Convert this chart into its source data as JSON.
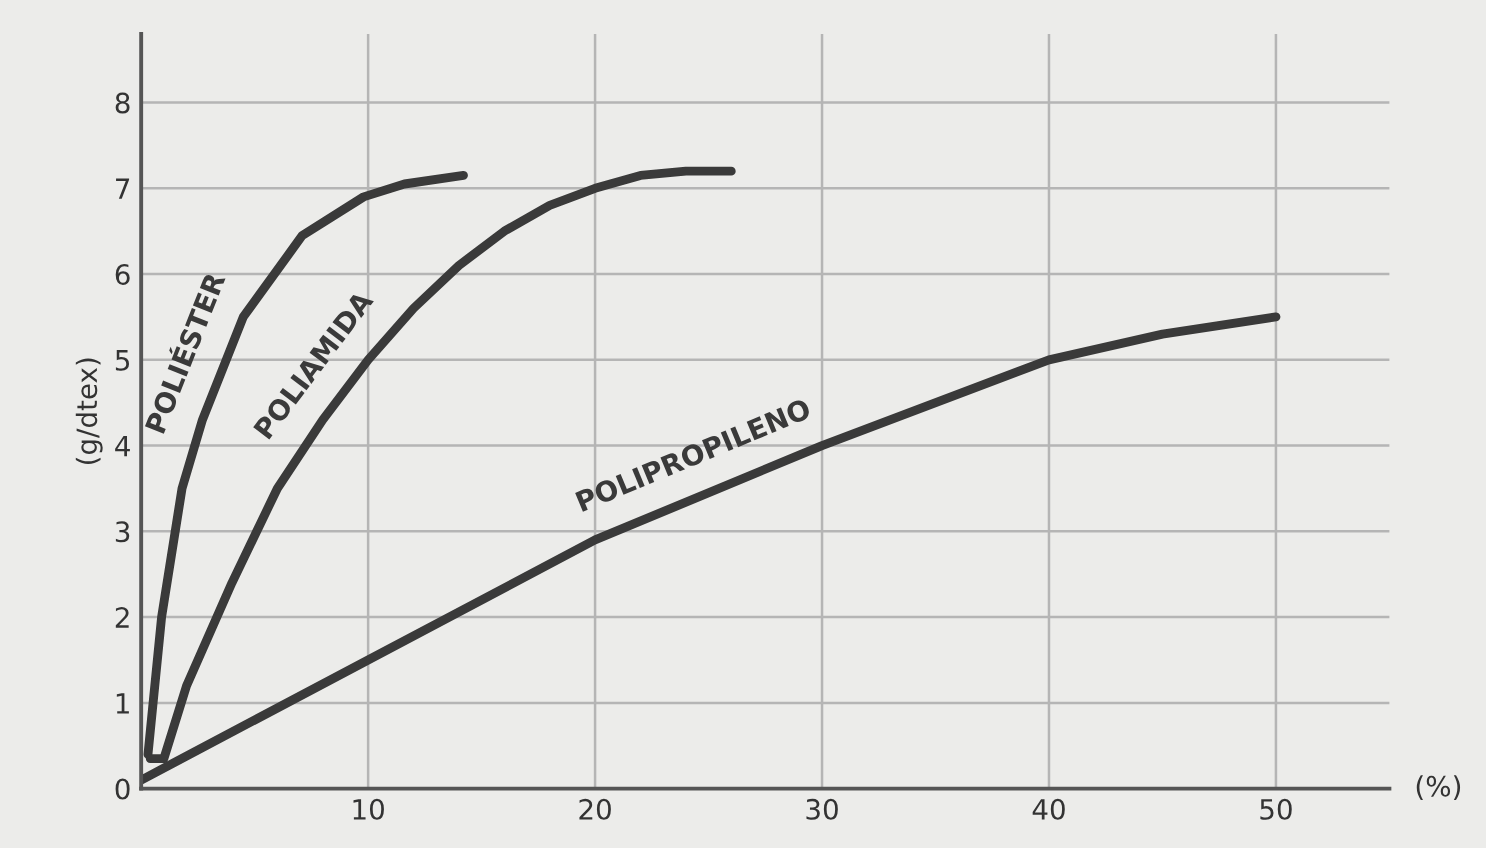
{
  "chart_data": {
    "type": "line",
    "xlabel": "(%)",
    "ylabel": "(g/dtex)",
    "xlim": [
      0,
      55
    ],
    "ylim": [
      0,
      8.8
    ],
    "xticks": [
      10,
      20,
      30,
      40,
      50
    ],
    "yticks": [
      0,
      1,
      2,
      3,
      4,
      5,
      6,
      7,
      8
    ],
    "grid": true,
    "marker": "none",
    "line_style": "solid",
    "series": [
      {
        "name": "POLIÉSTER",
        "color": "#3a3a3a",
        "x": [
          0.3,
          0.9,
          1.8,
          2.7,
          4.5,
          7.1,
          9.8,
          11.6,
          14.2
        ],
        "values": [
          0.4,
          2.0,
          3.5,
          4.3,
          5.5,
          6.45,
          6.9,
          7.05,
          7.15
        ]
      },
      {
        "name": "POLIAMIDA",
        "color": "#3a3a3a",
        "x": [
          0.4,
          1.0,
          2,
          4,
          6,
          8,
          10,
          12,
          14,
          16,
          18,
          20,
          22,
          24,
          26
        ],
        "values": [
          0.35,
          0.35,
          1.2,
          2.4,
          3.5,
          4.3,
          5.0,
          5.6,
          6.1,
          6.5,
          6.8,
          7.0,
          7.15,
          7.2,
          7.2
        ]
      },
      {
        "name": "POLIPROPILENO",
        "color": "#3a3a3a",
        "x": [
          0,
          10,
          20,
          30,
          40,
          45,
          50
        ],
        "values": [
          0.1,
          1.5,
          2.9,
          4.0,
          5.0,
          5.3,
          5.5
        ]
      }
    ]
  }
}
